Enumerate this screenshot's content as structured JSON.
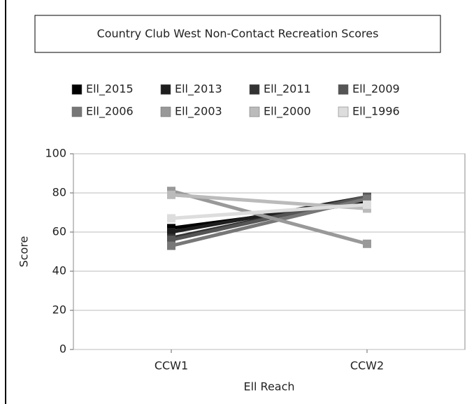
{
  "chart_data": {
    "type": "line",
    "title": "Country Club West Non-Contact Recreation Scores",
    "x_label": "Ell Reach",
    "y_label": "Score",
    "categories": [
      "CCW1",
      "CCW2"
    ],
    "series": [
      {
        "name": "Ell_2015",
        "color": "#000000",
        "values": [
          62,
          75
        ]
      },
      {
        "name": "Ell_2013",
        "color": "#1e1e1e",
        "values": [
          60,
          78
        ]
      },
      {
        "name": "Ell_2011",
        "color": "#333333",
        "values": [
          57,
          78
        ]
      },
      {
        "name": "Ell_2009",
        "color": "#555555",
        "values": [
          56,
          78
        ]
      },
      {
        "name": "Ell_2006",
        "color": "#777777",
        "values": [
          53,
          77
        ]
      },
      {
        "name": "Ell_2003",
        "color": "#999999",
        "values": [
          81,
          54
        ]
      },
      {
        "name": "Ell_2000",
        "color": "#bbbbbb",
        "values": [
          79,
          72
        ]
      },
      {
        "name": "Ell_1996",
        "color": "#dddddd",
        "values": [
          67,
          74
        ]
      }
    ],
    "ylim": [
      0,
      100
    ],
    "yticks": [
      0,
      20,
      40,
      60,
      80,
      100
    ],
    "grid": true,
    "legend": "top"
  }
}
